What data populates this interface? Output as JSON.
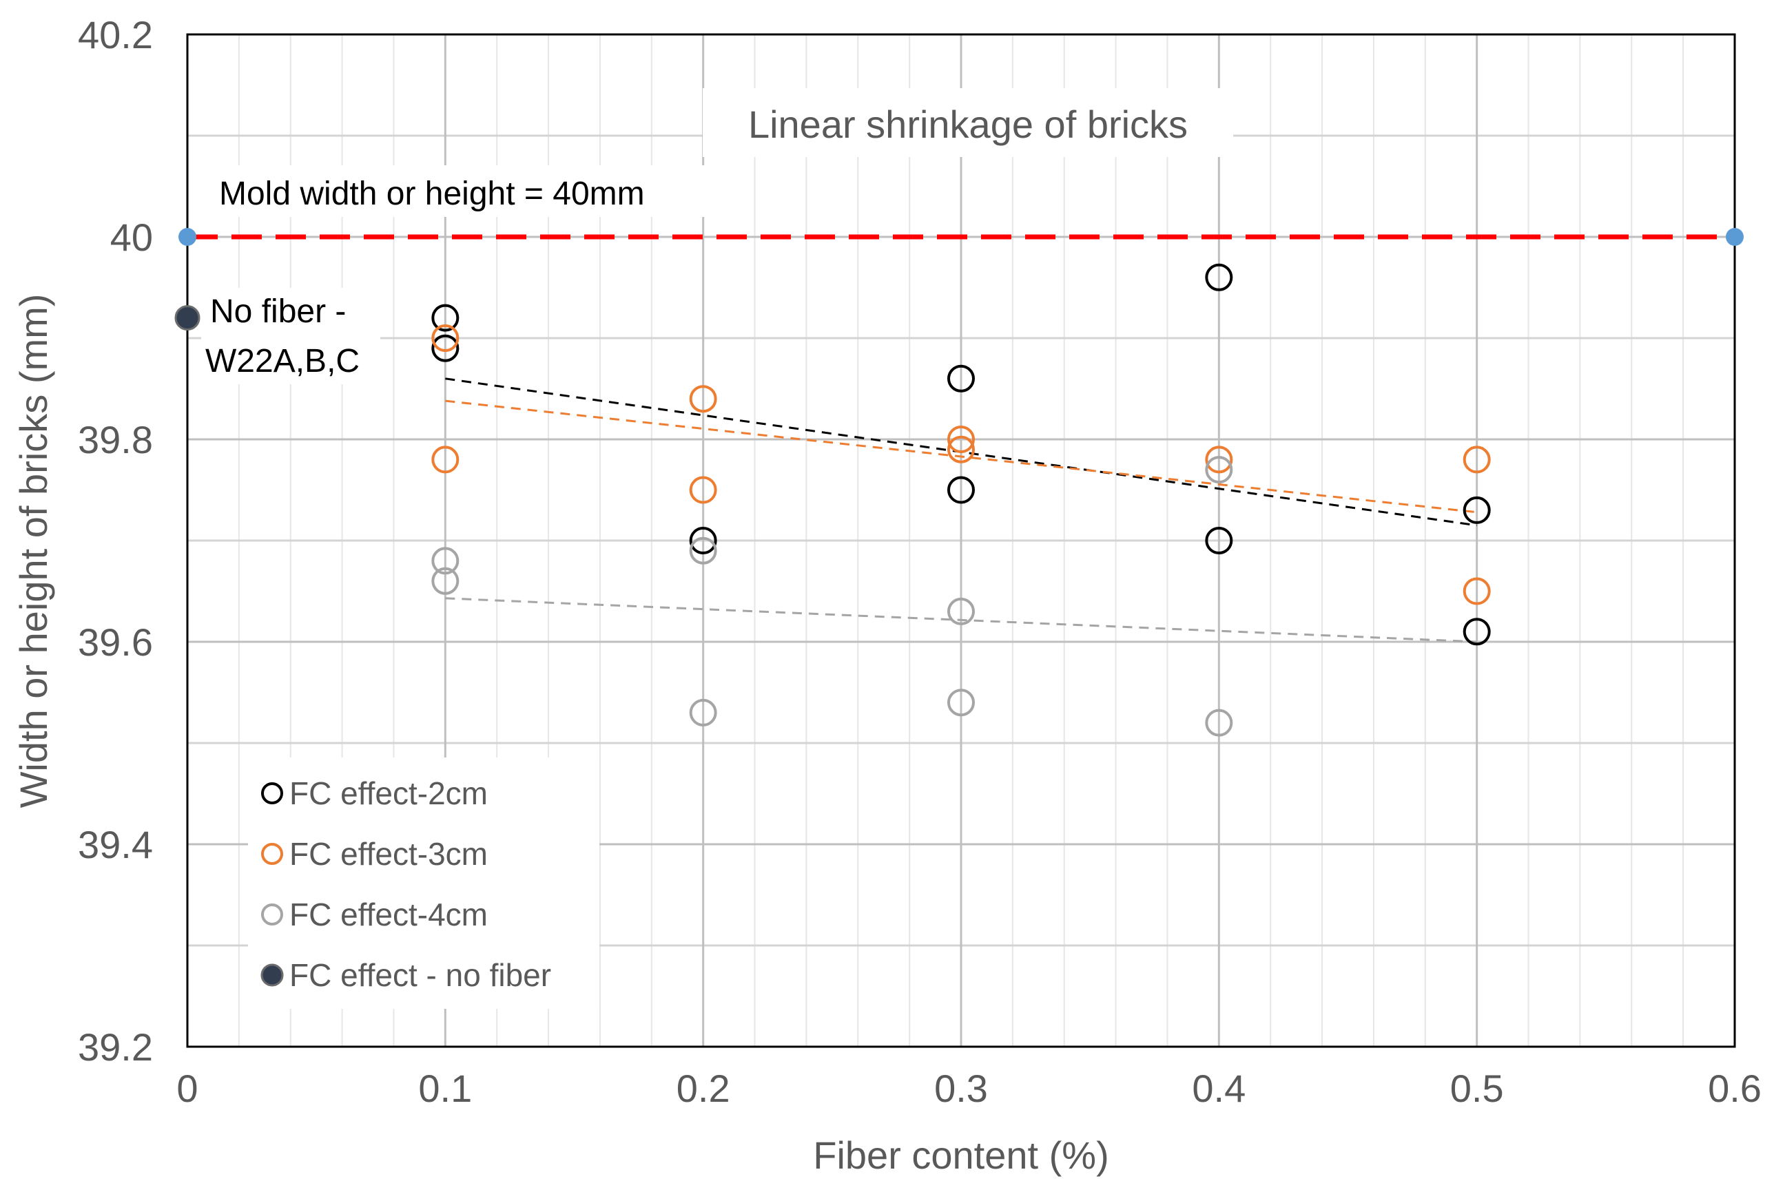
{
  "chart_data": {
    "type": "scatter",
    "title": "Linear shrinkage of bricks",
    "xlabel": "Fiber content (%)",
    "ylabel": "Width or height of bricks (mm)",
    "xlim": [
      0,
      0.6
    ],
    "ylim": [
      39.2,
      40.2
    ],
    "x_ticks": [
      "0",
      "0.1",
      "0.2",
      "0.3",
      "0.4",
      "0.5",
      "0.6"
    ],
    "y_ticks": [
      "39.2",
      "39.4",
      "39.6",
      "39.8",
      "40",
      "40.2"
    ],
    "x_tick_values": [
      0,
      0.1,
      0.2,
      0.3,
      0.4,
      0.5,
      0.6
    ],
    "y_tick_values": [
      39.2,
      39.4,
      39.6,
      39.8,
      40.0,
      40.2
    ],
    "minor_x_step": 0.02,
    "grid": true,
    "legend_position": "bottom-left",
    "series": [
      {
        "name": "FC effect-2cm",
        "color": "#000000",
        "marker": "open-circle",
        "points": [
          [
            0.1,
            39.92
          ],
          [
            0.1,
            39.89
          ],
          [
            0.2,
            39.7
          ],
          [
            0.3,
            39.86
          ],
          [
            0.3,
            39.75
          ],
          [
            0.4,
            39.96
          ],
          [
            0.4,
            39.7
          ],
          [
            0.5,
            39.73
          ],
          [
            0.5,
            39.61
          ]
        ],
        "trendline": [
          [
            0.1,
            39.86
          ],
          [
            0.5,
            39.715
          ]
        ]
      },
      {
        "name": "FC effect-3cm",
        "color": "#ED7D31",
        "marker": "open-circle",
        "points": [
          [
            0.1,
            39.9
          ],
          [
            0.1,
            39.78
          ],
          [
            0.2,
            39.84
          ],
          [
            0.2,
            39.75
          ],
          [
            0.3,
            39.8
          ],
          [
            0.3,
            39.79
          ],
          [
            0.4,
            39.78
          ],
          [
            0.5,
            39.78
          ],
          [
            0.5,
            39.65
          ]
        ],
        "trendline": [
          [
            0.1,
            39.838
          ],
          [
            0.5,
            39.728
          ]
        ]
      },
      {
        "name": "FC effect-4cm",
        "color": "#A5A5A5",
        "marker": "open-circle",
        "points": [
          [
            0.1,
            39.68
          ],
          [
            0.1,
            39.66
          ],
          [
            0.2,
            39.69
          ],
          [
            0.2,
            39.53
          ],
          [
            0.3,
            39.63
          ],
          [
            0.3,
            39.54
          ],
          [
            0.4,
            39.77
          ],
          [
            0.4,
            39.52
          ]
        ],
        "trendline": [
          [
            0.1,
            39.643
          ],
          [
            0.5,
            39.6
          ]
        ]
      },
      {
        "name": "FC effect - no fiber",
        "color": "#323E4F",
        "marker": "filled-circle",
        "points": [
          [
            0,
            39.92
          ]
        ]
      }
    ],
    "reference_line": {
      "label": "Mold width or height = 40mm",
      "y": 40.0,
      "x_range": [
        0,
        0.6
      ],
      "color": "#FF0000",
      "end_marker_color": "#5B9BD5"
    },
    "annotations": [
      {
        "text_line1": "No fiber -",
        "text_line2": "W22A,B,C"
      }
    ]
  }
}
